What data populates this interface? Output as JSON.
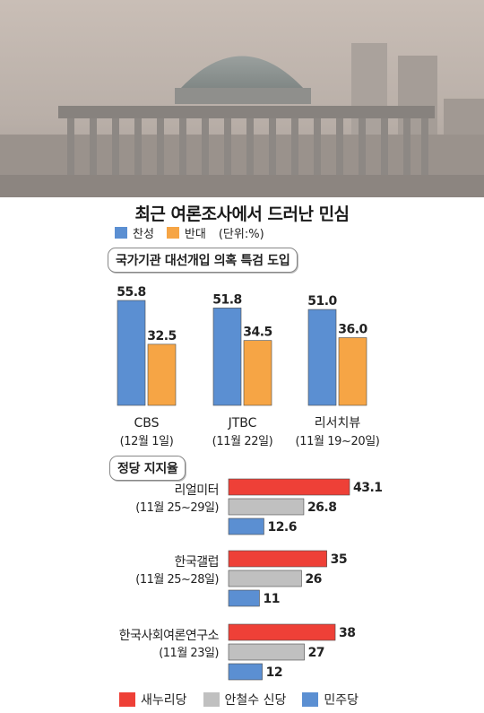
{
  "title": "최근 여론조사에서 드러난 민심",
  "legend_top": [
    {
      "label": "찬성",
      "color": "#5b8fd2"
    },
    {
      "label": "반대",
      "color": "#f6a545"
    }
  ],
  "unit_label": "(단위:%)",
  "section1_title": "국가기관 대선개입 의혹 특검 도입",
  "section2_title": "정당 지지율",
  "legend_bottom": [
    {
      "label": "새누리당",
      "color": "#ee4037"
    },
    {
      "label": "안철수 신당",
      "color": "#c0c0c0"
    },
    {
      "label": "민주당",
      "color": "#5b8fd2"
    }
  ],
  "chart_data": [
    {
      "type": "bar",
      "title": "국가기관 대선개입 의혹 특검 도입",
      "categories": [
        "CBS",
        "JTBC",
        "리서치뷰"
      ],
      "dates": [
        "(12월 1일)",
        "(11월 22일)",
        "(11월 19~20일)"
      ],
      "series": [
        {
          "name": "찬성",
          "values": [
            55.8,
            51.8,
            51.0
          ],
          "labels": [
            "55.8",
            "51.8",
            "51.0"
          ],
          "color": "#5b8fd2"
        },
        {
          "name": "반대",
          "values": [
            32.5,
            34.5,
            36.0
          ],
          "labels": [
            "32.5",
            "34.5",
            "36.0"
          ],
          "color": "#f6a545"
        }
      ],
      "ylim": [
        0,
        60
      ],
      "grid": false,
      "legend": "top-left"
    },
    {
      "type": "bar",
      "orientation": "horizontal",
      "title": "정당 지지율",
      "categories": [
        "리얼미터",
        "한국갤럽",
        "한국사회여론연구소"
      ],
      "dates": [
        "(11월 25~29일)",
        "(11월 25~28일)",
        "(11월 23일)"
      ],
      "series": [
        {
          "name": "새누리당",
          "values": [
            43.1,
            35,
            38
          ],
          "labels": [
            "43.1",
            "35",
            "38"
          ],
          "color": "#ee4037"
        },
        {
          "name": "안철수 신당",
          "values": [
            26.8,
            26,
            27
          ],
          "labels": [
            "26.8",
            "26",
            "27"
          ],
          "color": "#c0c0c0"
        },
        {
          "name": "민주당",
          "values": [
            12.6,
            11,
            12
          ],
          "labels": [
            "12.6",
            "11",
            "12"
          ],
          "color": "#5b8fd2"
        }
      ],
      "xlim": [
        0,
        45
      ],
      "grid": false,
      "legend": "bottom"
    }
  ]
}
